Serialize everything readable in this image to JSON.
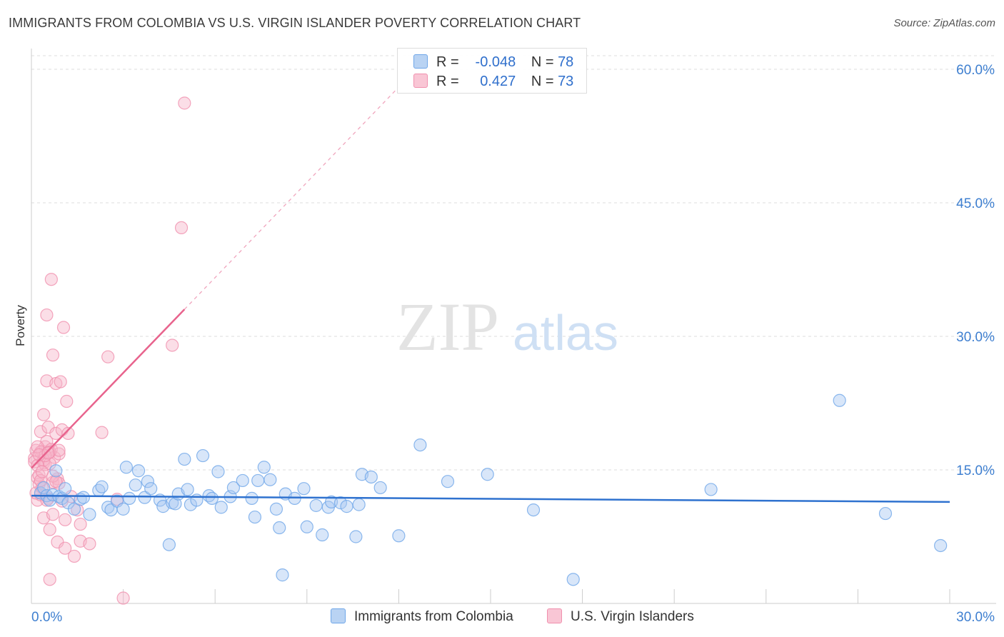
{
  "title": "IMMIGRANTS FROM COLOMBIA VS U.S. VIRGIN ISLANDER POVERTY CORRELATION CHART",
  "source": "Source: ZipAtlas.com",
  "watermark": {
    "zip": "ZIP",
    "atlas": "atlas"
  },
  "colors": {
    "blue": "#6fa6e8",
    "blue_fill": "#a9c8f1",
    "blue_line": "#2f72cf",
    "pink": "#f090ae",
    "pink_fill": "#f7b6ca",
    "pink_line": "#e8638d",
    "tick": "#3e7fd0",
    "grid": "#dcdcdc"
  },
  "legend": {
    "r_label": "R =",
    "n_label": "N =",
    "blue": {
      "r": "-0.048",
      "n": "78"
    },
    "pink": {
      "r": "0.427",
      "n": "73"
    }
  },
  "bottom_legend": {
    "blue": "Immigrants from Colombia",
    "pink": "U.S. Virgin Islanders"
  },
  "chart_data": {
    "type": "scatter",
    "title": "IMMIGRANTS FROM COLOMBIA VS U.S. VIRGIN ISLANDER POVERTY CORRELATION CHART",
    "xlabel": "",
    "ylabel": "Poverty",
    "xlim": [
      0,
      30
    ],
    "ylim": [
      0,
      60
    ],
    "x_tick_labels": [
      "0.0%",
      "30.0%"
    ],
    "x_tick_values": [
      0,
      30
    ],
    "y_tick_labels": [
      "15.0%",
      "30.0%",
      "45.0%",
      "60.0%"
    ],
    "y_tick_values": [
      15,
      30,
      45,
      60
    ],
    "series": [
      {
        "name": "Immigrants from Colombia",
        "color": "#6fa6e8",
        "trend": {
          "x0": 0,
          "y0": 12.1,
          "x1": 30,
          "y1": 11.4,
          "solid_to": 30
        },
        "points": [
          [
            0.3,
            12.4
          ],
          [
            0.4,
            13.0
          ],
          [
            0.5,
            12.1
          ],
          [
            0.6,
            11.6
          ],
          [
            0.7,
            12.2
          ],
          [
            0.8,
            14.9
          ],
          [
            0.9,
            12.0
          ],
          [
            1.0,
            11.8
          ],
          [
            1.1,
            12.9
          ],
          [
            1.2,
            11.3
          ],
          [
            1.4,
            10.6
          ],
          [
            1.6,
            11.7
          ],
          [
            1.7,
            11.9
          ],
          [
            1.9,
            10.0
          ],
          [
            2.2,
            12.7
          ],
          [
            2.3,
            13.1
          ],
          [
            2.5,
            10.8
          ],
          [
            2.6,
            10.5
          ],
          [
            2.8,
            11.5
          ],
          [
            3.0,
            10.6
          ],
          [
            3.1,
            15.3
          ],
          [
            3.2,
            11.8
          ],
          [
            3.4,
            13.3
          ],
          [
            3.5,
            14.9
          ],
          [
            3.7,
            11.9
          ],
          [
            3.8,
            13.7
          ],
          [
            3.9,
            12.9
          ],
          [
            4.2,
            11.6
          ],
          [
            4.3,
            10.9
          ],
          [
            4.5,
            6.6
          ],
          [
            4.6,
            11.3
          ],
          [
            4.7,
            11.2
          ],
          [
            4.8,
            12.3
          ],
          [
            5.0,
            16.2
          ],
          [
            5.1,
            12.8
          ],
          [
            5.2,
            11.1
          ],
          [
            5.4,
            11.6
          ],
          [
            5.6,
            16.6
          ],
          [
            5.8,
            12.1
          ],
          [
            5.9,
            11.8
          ],
          [
            6.1,
            14.8
          ],
          [
            6.2,
            10.8
          ],
          [
            6.5,
            12.0
          ],
          [
            6.6,
            13.0
          ],
          [
            6.9,
            13.8
          ],
          [
            7.2,
            11.8
          ],
          [
            7.3,
            9.7
          ],
          [
            7.4,
            13.8
          ],
          [
            7.6,
            15.3
          ],
          [
            7.8,
            13.9
          ],
          [
            8.0,
            10.6
          ],
          [
            8.1,
            8.5
          ],
          [
            8.2,
            3.2
          ],
          [
            8.3,
            12.3
          ],
          [
            8.6,
            11.8
          ],
          [
            8.9,
            12.9
          ],
          [
            9.0,
            8.6
          ],
          [
            9.3,
            11.0
          ],
          [
            9.5,
            7.7
          ],
          [
            9.7,
            10.8
          ],
          [
            9.8,
            11.4
          ],
          [
            10.1,
            11.3
          ],
          [
            10.3,
            10.9
          ],
          [
            10.6,
            7.5
          ],
          [
            10.7,
            11.1
          ],
          [
            10.8,
            14.5
          ],
          [
            11.1,
            14.2
          ],
          [
            11.4,
            13.0
          ],
          [
            12.0,
            7.6
          ],
          [
            12.7,
            17.8
          ],
          [
            13.6,
            13.7
          ],
          [
            14.9,
            14.5
          ],
          [
            16.4,
            10.5
          ],
          [
            17.7,
            2.7
          ],
          [
            22.2,
            12.8
          ],
          [
            26.4,
            22.8
          ],
          [
            27.9,
            10.1
          ],
          [
            29.7,
            6.5
          ]
        ]
      },
      {
        "name": "U.S. Virgin Islanders",
        "color": "#f090ae",
        "trend": {
          "x0": 0,
          "y0": 15.2,
          "x1": 12.0,
          "y1": 58.0,
          "solid_to": 5.0
        },
        "points": [
          [
            0.1,
            16.3
          ],
          [
            0.1,
            15.9
          ],
          [
            0.15,
            17.2
          ],
          [
            0.2,
            14.1
          ],
          [
            0.2,
            11.6
          ],
          [
            0.25,
            13.4
          ],
          [
            0.3,
            12.2
          ],
          [
            0.3,
            19.3
          ],
          [
            0.35,
            17.1
          ],
          [
            0.4,
            15.8
          ],
          [
            0.4,
            21.2
          ],
          [
            0.4,
            9.6
          ],
          [
            0.45,
            17.6
          ],
          [
            0.5,
            32.4
          ],
          [
            0.5,
            25.0
          ],
          [
            0.5,
            18.2
          ],
          [
            0.55,
            16.9
          ],
          [
            0.55,
            19.8
          ],
          [
            0.6,
            2.7
          ],
          [
            0.6,
            8.3
          ],
          [
            0.65,
            17.3
          ],
          [
            0.65,
            36.4
          ],
          [
            0.7,
            27.9
          ],
          [
            0.7,
            10.0
          ],
          [
            0.7,
            13.6
          ],
          [
            0.75,
            16.4
          ],
          [
            0.8,
            19.1
          ],
          [
            0.8,
            24.7
          ],
          [
            0.85,
            14.0
          ],
          [
            0.85,
            6.9
          ],
          [
            0.9,
            13.5
          ],
          [
            0.9,
            16.8
          ],
          [
            0.95,
            24.9
          ],
          [
            1.0,
            11.5
          ],
          [
            1.0,
            19.5
          ],
          [
            1.05,
            31.0
          ],
          [
            1.1,
            9.4
          ],
          [
            1.1,
            6.2
          ],
          [
            1.15,
            22.7
          ],
          [
            1.2,
            19.1
          ],
          [
            1.3,
            12.0
          ],
          [
            1.4,
            5.3
          ],
          [
            1.5,
            10.5
          ],
          [
            1.6,
            7.0
          ],
          [
            1.6,
            8.9
          ],
          [
            1.9,
            6.7
          ],
          [
            2.3,
            19.2
          ],
          [
            2.5,
            27.7
          ],
          [
            2.8,
            11.7
          ],
          [
            3.0,
            0.6
          ],
          [
            4.6,
            29.0
          ],
          [
            4.9,
            42.2
          ],
          [
            5.0,
            56.2
          ],
          [
            0.15,
            12.4
          ],
          [
            0.25,
            14.4
          ],
          [
            0.35,
            13.0
          ],
          [
            0.45,
            15.6
          ],
          [
            0.55,
            11.8
          ],
          [
            0.6,
            17.0
          ],
          [
            0.7,
            14.3
          ],
          [
            0.8,
            13.7
          ],
          [
            0.3,
            17.0
          ],
          [
            0.4,
            16.1
          ],
          [
            0.5,
            11.6
          ],
          [
            0.2,
            15.5
          ],
          [
            0.3,
            13.8
          ],
          [
            0.6,
            15.7
          ],
          [
            0.9,
            17.2
          ],
          [
            0.2,
            17.6
          ],
          [
            0.45,
            16.6
          ],
          [
            0.35,
            14.8
          ],
          [
            0.25,
            16.7
          ],
          [
            0.55,
            16.9
          ]
        ]
      }
    ]
  }
}
